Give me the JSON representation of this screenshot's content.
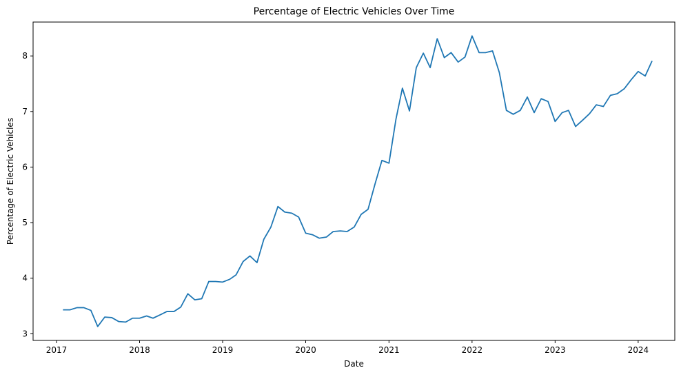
{
  "chart_data": {
    "type": "line",
    "title": "Percentage of Electric Vehicles Over Time",
    "xlabel": "Date",
    "ylabel": "Percentage of Electric Vehicles",
    "xlim": [
      "2016-09-20",
      "2024-06-10"
    ],
    "ylim": [
      2.88,
      8.61
    ],
    "xticks": [
      "2017",
      "2018",
      "2019",
      "2020",
      "2021",
      "2022",
      "2023",
      "2024"
    ],
    "yticks": [
      "3",
      "4",
      "5",
      "6",
      "7",
      "8"
    ],
    "grid": false,
    "legend": "none",
    "line_color": "#1f77b4",
    "series": [
      {
        "x": [
          "2017-02-01",
          "2017-03-01",
          "2017-04-01",
          "2017-05-01",
          "2017-06-01",
          "2017-07-01",
          "2017-08-01",
          "2017-09-01",
          "2017-10-01",
          "2017-11-01",
          "2017-12-01",
          "2018-01-01",
          "2018-02-01",
          "2018-03-01",
          "2018-04-01",
          "2018-05-01",
          "2018-06-01",
          "2018-07-01",
          "2018-08-01",
          "2018-09-01",
          "2018-10-01",
          "2018-11-01",
          "2018-12-01",
          "2019-01-01",
          "2019-02-01",
          "2019-03-01",
          "2019-04-01",
          "2019-05-01",
          "2019-06-01",
          "2019-07-01",
          "2019-08-01",
          "2019-09-01",
          "2019-10-01",
          "2019-11-01",
          "2019-12-01",
          "2020-01-01",
          "2020-02-01",
          "2020-03-01",
          "2020-04-01",
          "2020-05-01",
          "2020-06-01",
          "2020-07-01",
          "2020-08-01",
          "2020-09-01",
          "2020-10-01",
          "2020-11-01",
          "2020-12-01",
          "2021-01-01",
          "2021-02-01",
          "2021-03-01",
          "2021-04-01",
          "2021-05-01",
          "2021-06-01",
          "2021-07-01",
          "2021-08-01",
          "2021-09-01",
          "2021-10-01",
          "2021-11-01",
          "2021-12-01",
          "2022-01-01",
          "2022-02-01",
          "2022-03-01",
          "2022-04-01",
          "2022-05-01",
          "2022-06-01",
          "2022-07-01",
          "2022-08-01",
          "2022-09-01",
          "2022-10-01",
          "2022-11-01",
          "2022-12-01",
          "2023-01-01",
          "2023-02-01",
          "2023-03-01",
          "2023-04-01",
          "2023-05-01",
          "2023-06-01",
          "2023-07-01",
          "2023-08-01",
          "2023-09-01",
          "2023-10-01",
          "2023-11-01",
          "2023-12-01",
          "2024-01-01",
          "2024-02-01",
          "2024-03-01"
        ],
        "y": [
          3.43,
          3.43,
          3.47,
          3.47,
          3.42,
          3.13,
          3.3,
          3.29,
          3.22,
          3.21,
          3.28,
          3.28,
          3.32,
          3.28,
          3.34,
          3.4,
          3.4,
          3.48,
          3.72,
          3.61,
          3.63,
          3.94,
          3.94,
          3.93,
          3.98,
          4.06,
          4.3,
          4.4,
          4.28,
          4.7,
          4.92,
          5.29,
          5.19,
          5.17,
          5.1,
          4.81,
          4.78,
          4.72,
          4.74,
          4.84,
          4.85,
          4.84,
          4.92,
          5.15,
          5.24,
          5.7,
          6.12,
          6.07,
          6.87,
          7.42,
          7.01,
          7.79,
          8.05,
          7.79,
          8.31,
          7.97,
          8.06,
          7.89,
          7.98,
          8.36,
          8.06,
          8.06,
          8.09,
          7.7,
          7.02,
          6.95,
          7.02,
          7.26,
          6.98,
          7.23,
          7.18,
          6.82,
          6.98,
          7.02,
          6.73,
          6.84,
          6.96,
          7.12,
          7.09,
          7.29,
          7.32,
          7.41,
          7.57,
          7.72,
          7.64,
          7.9
        ]
      }
    ]
  }
}
